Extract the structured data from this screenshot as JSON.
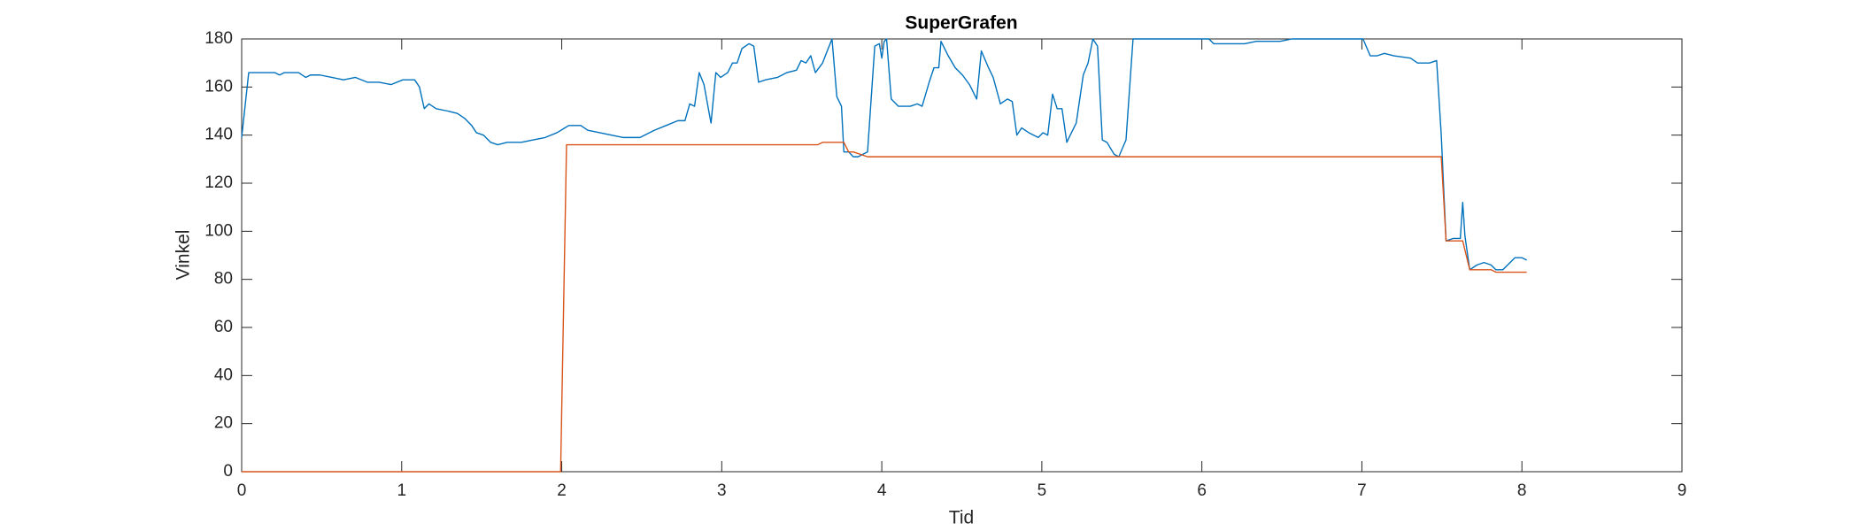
{
  "chart_data": {
    "type": "line",
    "title": "SuperGrafen",
    "xlabel": "Tid",
    "ylabel": "Vinkel",
    "xlim": [
      0,
      9
    ],
    "xticks": [
      0,
      1,
      2,
      3,
      4,
      5,
      6,
      7,
      8,
      9
    ],
    "ylim": [
      0,
      180
    ],
    "yticks": [
      0,
      20,
      40,
      60,
      80,
      100,
      120,
      140,
      160,
      180
    ],
    "grid": false,
    "series": [
      {
        "color": "#0072BD",
        "x": [
          0,
          0.044,
          0.207,
          0.237,
          0.267,
          0.356,
          0.4,
          0.43,
          0.489,
          0.563,
          0.637,
          0.711,
          0.785,
          0.859,
          0.933,
          1.007,
          1.081,
          1.111,
          1.141,
          1.17,
          1.215,
          1.289,
          1.348,
          1.393,
          1.437,
          1.467,
          1.511,
          1.556,
          1.6,
          1.659,
          1.748,
          1.822,
          1.896,
          1.97,
          2.044,
          2.119,
          2.163,
          2.237,
          2.311,
          2.385,
          2.489,
          2.578,
          2.652,
          2.726,
          2.77,
          2.8,
          2.83,
          2.859,
          2.889,
          2.919,
          2.933,
          2.963,
          2.993,
          3.037,
          3.067,
          3.096,
          3.126,
          3.17,
          3.2,
          3.23,
          3.274,
          3.348,
          3.407,
          3.467,
          3.496,
          3.526,
          3.556,
          3.585,
          3.63,
          3.659,
          3.689,
          3.719,
          3.748,
          3.763,
          3.793,
          3.822,
          3.852,
          3.911,
          3.956,
          3.985,
          4.0,
          4.015,
          4.03,
          4.059,
          4.104,
          4.178,
          4.222,
          4.252,
          4.296,
          4.326,
          4.356,
          4.37,
          4.415,
          4.459,
          4.504,
          4.548,
          4.593,
          4.622,
          4.667,
          4.696,
          4.741,
          4.785,
          4.815,
          4.844,
          4.874,
          4.919,
          4.978,
          5.007,
          5.037,
          5.067,
          5.096,
          5.126,
          5.156,
          5.185,
          5.215,
          5.259,
          5.289,
          5.319,
          5.348,
          5.378,
          5.407,
          5.452,
          5.481,
          5.526,
          5.57,
          5.6,
          6.044,
          6.074,
          6.267,
          6.341,
          6.489,
          6.563,
          7.007,
          7.052,
          7.096,
          7.141,
          7.2,
          7.304,
          7.348,
          7.422,
          7.467,
          7.496,
          7.526,
          7.57,
          7.615,
          7.63,
          7.644,
          7.674,
          7.719,
          7.763,
          7.807,
          7.837,
          7.881,
          7.911,
          7.956,
          8.0,
          8.03
        ],
        "values": [
          139,
          166,
          166,
          165,
          166,
          166,
          164,
          165,
          165,
          164,
          163,
          164,
          162,
          162,
          161,
          163,
          163,
          160,
          151,
          153,
          151,
          150,
          149,
          147,
          144,
          141,
          140,
          137,
          136,
          137,
          137,
          138,
          139,
          141,
          144,
          144,
          142,
          141,
          140,
          139,
          139,
          142,
          144,
          146,
          146,
          153,
          152,
          166,
          161,
          150,
          145,
          166,
          164,
          166,
          170,
          170,
          176,
          178,
          177,
          162,
          163,
          164,
          166,
          167,
          171,
          170,
          173,
          166,
          170,
          175,
          180,
          156,
          152,
          133,
          133,
          131,
          131,
          133,
          177,
          178,
          172,
          179,
          180,
          155,
          152,
          152,
          153,
          152,
          162,
          168,
          168,
          179,
          173,
          168,
          165,
          161,
          155,
          175,
          168,
          164,
          153,
          155,
          154,
          140,
          143,
          141,
          139,
          141,
          140,
          157,
          151,
          151,
          137,
          141,
          145,
          165,
          170,
          180,
          177,
          138,
          137,
          132,
          131,
          138,
          180,
          180,
          180,
          178,
          178,
          179,
          179,
          180,
          180,
          173,
          173,
          174,
          173,
          172,
          170,
          170,
          171,
          140,
          96,
          97,
          97,
          112,
          98,
          84,
          86,
          87,
          86,
          84,
          84,
          86,
          89,
          89,
          88
        ]
      },
      {
        "color": "#D95319",
        "x": [
          0,
          1.993,
          2.03,
          3.6,
          3.63,
          3.763,
          3.793,
          3.822,
          3.911,
          7.496,
          7.526,
          7.63,
          7.674,
          7.807,
          7.837,
          8.03
        ],
        "values": [
          0,
          0,
          136,
          136,
          137,
          137,
          133,
          133,
          131,
          131,
          96,
          96,
          84,
          84,
          83,
          83
        ]
      }
    ]
  }
}
